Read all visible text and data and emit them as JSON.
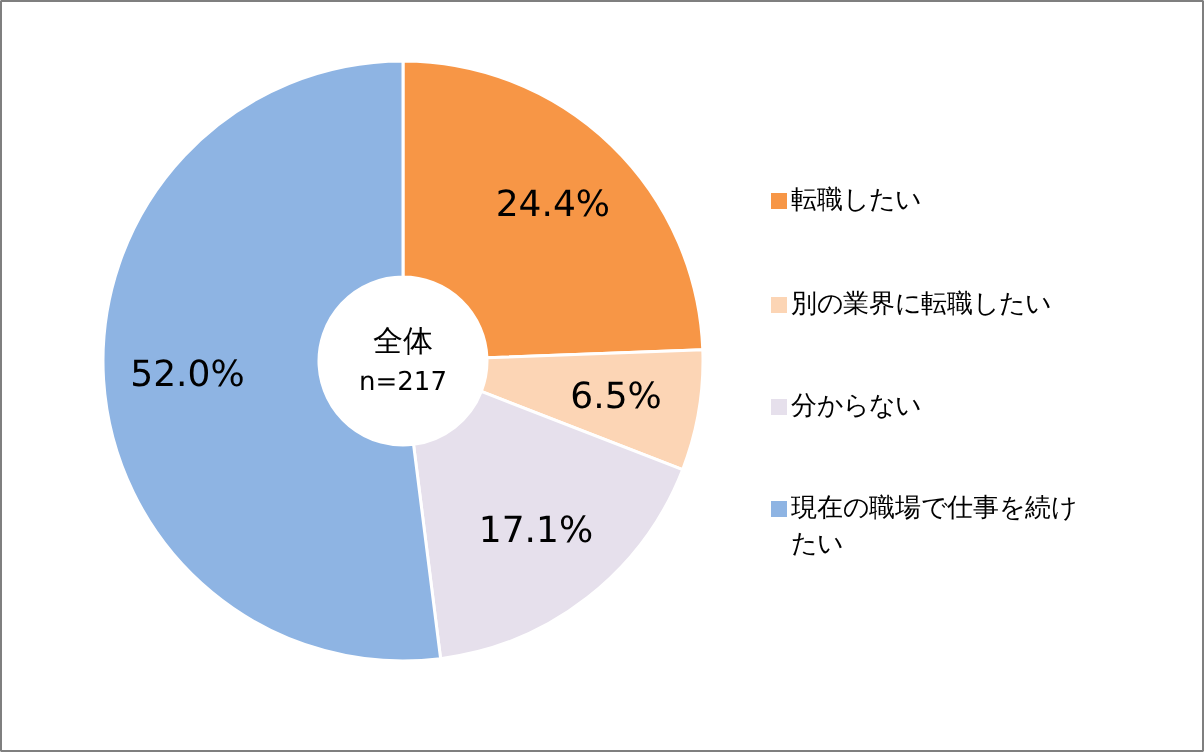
{
  "chart_data": {
    "type": "donut",
    "title": "全体",
    "subtitle": "n=217",
    "categories": [
      "転職したい",
      "別の業界に転職したい",
      "分からない",
      "現在の職場で仕事を続けたい"
    ],
    "values": [
      24.4,
      6.5,
      17.1,
      52.0
    ],
    "value_labels": [
      "24.4%",
      "6.5%",
      "17.1%",
      "52.0%"
    ],
    "colors": [
      "#f79646",
      "#fcd5b5",
      "#e6e0ec",
      "#8eb4e3"
    ],
    "legend": "right"
  }
}
